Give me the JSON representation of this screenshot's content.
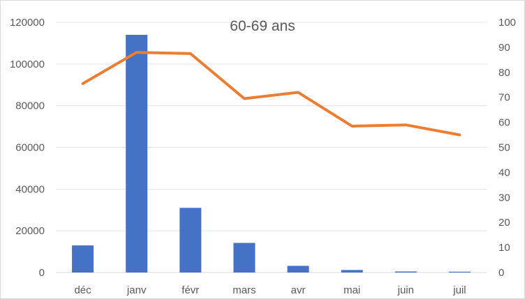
{
  "chart_data": {
    "type": "bar",
    "title": "60-69 ans",
    "categories": [
      "déc",
      "janv",
      "févr",
      "mars",
      "avr",
      "mai",
      "juin",
      "juil"
    ],
    "series": [
      {
        "type": "bar",
        "axis": "left",
        "color": "#4472C4",
        "values": [
          13000,
          114000,
          31000,
          14200,
          3200,
          1200,
          500,
          400
        ]
      },
      {
        "type": "line",
        "axis": "right",
        "color": "#ED7D31",
        "values": [
          75.5,
          88,
          87.5,
          69.5,
          72,
          58.5,
          59,
          55
        ]
      }
    ],
    "y_left": {
      "min": 0,
      "max": 120000,
      "ticks": [
        "0",
        "20000",
        "40000",
        "60000",
        "80000",
        "100000",
        "120000"
      ]
    },
    "y_right": {
      "min": 0,
      "max": 100,
      "ticks": [
        "0",
        "10",
        "20",
        "30",
        "40",
        "50",
        "60",
        "70",
        "80",
        "90",
        "100"
      ]
    },
    "grid": true,
    "legend": "none"
  }
}
